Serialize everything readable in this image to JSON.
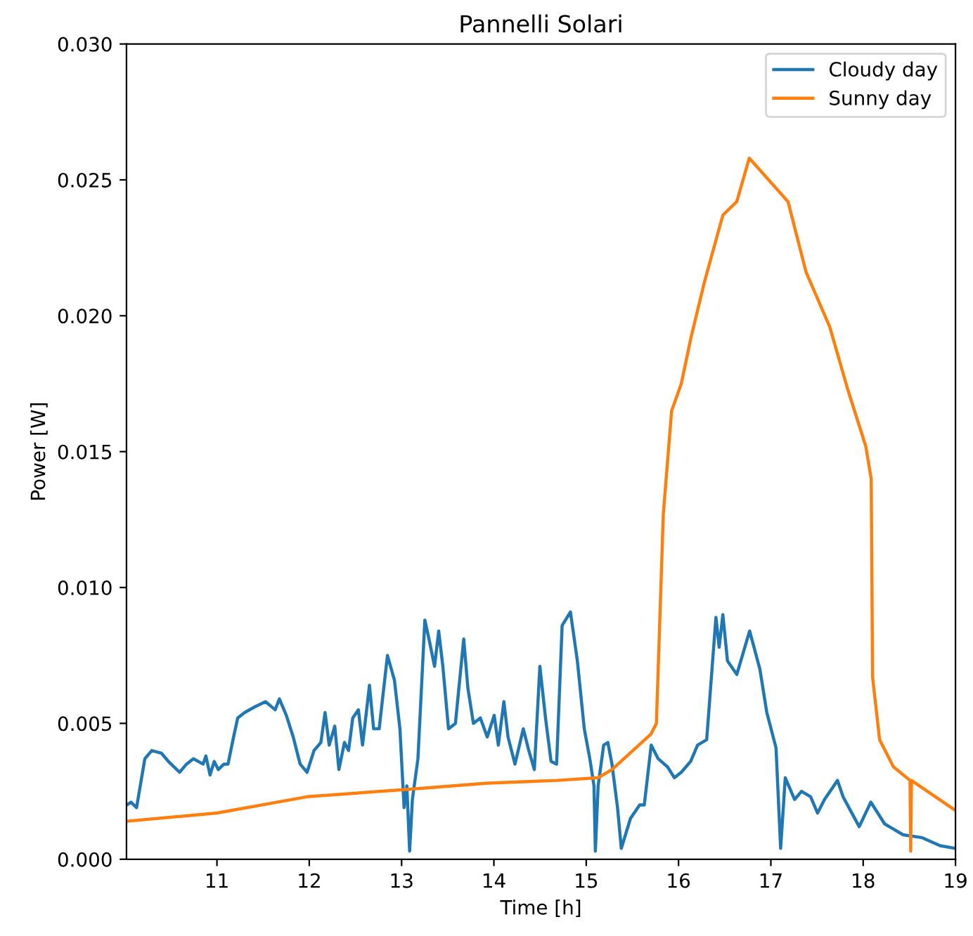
{
  "chart_data": {
    "type": "line",
    "title": "Pannelli Solari",
    "xlabel": "Time [h]",
    "ylabel": "Power [W]",
    "xlim": [
      10.02,
      19
    ],
    "ylim": [
      0,
      0.03
    ],
    "xticks": [
      11,
      12,
      13,
      14,
      15,
      16,
      17,
      18,
      19
    ],
    "yticks": [
      {
        "value": 0,
        "label": "0.000"
      },
      {
        "value": 0.005,
        "label": "0.005"
      },
      {
        "value": 0.01,
        "label": "0.010"
      },
      {
        "value": 0.015,
        "label": "0.015"
      },
      {
        "value": 0.02,
        "label": "0.020"
      },
      {
        "value": 0.025,
        "label": "0.025"
      },
      {
        "value": 0.03,
        "label": "0.030"
      }
    ],
    "grid": false,
    "legend": "top right",
    "marker": "none",
    "line_style": "solid",
    "series": [
      {
        "name": "Cloudy day",
        "color": "#1f77b4",
        "x": [
          10.024,
          10.069,
          10.129,
          10.219,
          10.294,
          10.399,
          10.474,
          10.595,
          10.67,
          10.745,
          10.85,
          10.88,
          10.925,
          10.97,
          11.015,
          11.075,
          11.12,
          11.18,
          11.225,
          11.3,
          11.405,
          11.526,
          11.631,
          11.676,
          11.751,
          11.826,
          11.901,
          11.976,
          12.051,
          12.126,
          12.171,
          12.216,
          12.276,
          12.321,
          12.381,
          12.426,
          12.471,
          12.532,
          12.577,
          12.652,
          12.697,
          12.757,
          12.847,
          12.922,
          12.982,
          13.027,
          13.057,
          13.087,
          13.117,
          13.177,
          13.252,
          13.297,
          13.357,
          13.402,
          13.447,
          13.508,
          13.583,
          13.673,
          13.718,
          13.778,
          13.853,
          13.928,
          14.003,
          14.048,
          14.108,
          14.153,
          14.228,
          14.318,
          14.378,
          14.438,
          14.498,
          14.559,
          14.619,
          14.679,
          14.739,
          14.829,
          14.904,
          14.979,
          15.039,
          15.084,
          15.099,
          15.129,
          15.189,
          15.234,
          15.279,
          15.339,
          15.38,
          15.479,
          15.579,
          15.629,
          15.704,
          15.779,
          15.88,
          15.955,
          16.03,
          16.131,
          16.206,
          16.305,
          16.356,
          16.405,
          16.44,
          16.48,
          16.53,
          16.631,
          16.77,
          16.881,
          16.956,
          17.056,
          17.106,
          17.156,
          17.257,
          17.332,
          17.431,
          17.506,
          17.581,
          17.722,
          17.782,
          17.957,
          18.083,
          18.233,
          18.433,
          18.632,
          18.834,
          18.998
        ],
        "values": [
          0.002,
          0.0021,
          0.0019,
          0.0037,
          0.004,
          0.0039,
          0.0036,
          0.0032,
          0.0035,
          0.0037,
          0.0035,
          0.0038,
          0.0031,
          0.0036,
          0.0033,
          0.0035,
          0.0035,
          0.0045,
          0.0052,
          0.0054,
          0.0056,
          0.0058,
          0.0055,
          0.0059,
          0.0053,
          0.0045,
          0.0035,
          0.0032,
          0.004,
          0.0043,
          0.0054,
          0.0042,
          0.0049,
          0.0033,
          0.0043,
          0.004,
          0.0052,
          0.0055,
          0.0042,
          0.0064,
          0.0048,
          0.0048,
          0.0075,
          0.0066,
          0.0048,
          0.0019,
          0.0027,
          0.0003,
          0.0022,
          0.0037,
          0.0088,
          0.0081,
          0.0071,
          0.0084,
          0.0071,
          0.0048,
          0.005,
          0.0081,
          0.0063,
          0.005,
          0.0052,
          0.0045,
          0.0053,
          0.0042,
          0.0058,
          0.0045,
          0.0035,
          0.0048,
          0.004,
          0.0033,
          0.0071,
          0.0052,
          0.0036,
          0.0035,
          0.0086,
          0.0091,
          0.0073,
          0.0048,
          0.0037,
          0.0027,
          0.0003,
          0.0027,
          0.0042,
          0.0043,
          0.0035,
          0.0019,
          0.0004,
          0.0015,
          0.002,
          0.002,
          0.0042,
          0.0037,
          0.0034,
          0.003,
          0.0032,
          0.0036,
          0.0042,
          0.0044,
          0.0067,
          0.0089,
          0.0078,
          0.009,
          0.0073,
          0.0068,
          0.0084,
          0.007,
          0.0054,
          0.0041,
          0.0004,
          0.003,
          0.0022,
          0.0025,
          0.0023,
          0.0017,
          0.0022,
          0.0029,
          0.0023,
          0.0012,
          0.0021,
          0.0013,
          0.0009,
          0.0008,
          0.0005,
          0.0004
        ]
      },
      {
        "name": "Sunny day",
        "color": "#ff7f0e",
        "x": [
          10.024,
          11.0,
          11.976,
          13.177,
          13.928,
          14.679,
          15.129,
          15.279,
          15.505,
          15.7,
          15.76,
          15.835,
          15.925,
          16.03,
          16.135,
          16.285,
          16.48,
          16.631,
          16.766,
          16.976,
          17.186,
          17.382,
          17.637,
          17.832,
          18.028,
          18.087,
          18.102,
          18.178,
          18.328,
          18.508,
          18.515,
          18.523,
          18.998
        ],
        "values": [
          0.0014,
          0.0017,
          0.0023,
          0.0026,
          0.0028,
          0.0029,
          0.003,
          0.0033,
          0.004,
          0.0046,
          0.005,
          0.0127,
          0.0165,
          0.0175,
          0.0192,
          0.0213,
          0.0237,
          0.0242,
          0.0258,
          0.025,
          0.0242,
          0.0216,
          0.0196,
          0.0173,
          0.0152,
          0.014,
          0.0067,
          0.0044,
          0.0034,
          0.0029,
          0.0003,
          0.0029,
          0.0018
        ]
      }
    ]
  }
}
